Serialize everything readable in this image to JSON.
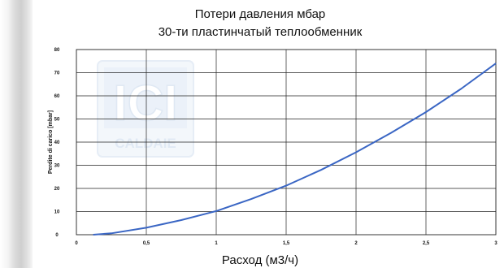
{
  "chart_data": {
    "type": "line",
    "title": "Потери давления мбар",
    "subtitle": "30-ти пластинчатый теплообменник",
    "xlabel": "Расход (м3/ч)",
    "ylabel": "Perdite di carico [mbar]",
    "xlim": [
      0,
      3
    ],
    "ylim": [
      0,
      80
    ],
    "x_ticks": [
      "0",
      "0,5",
      "1",
      "1,5",
      "2",
      "2,5",
      "3"
    ],
    "y_ticks": [
      "0",
      "10",
      "20",
      "30",
      "40",
      "50",
      "60",
      "70",
      "80"
    ],
    "grid": true,
    "series": [
      {
        "color": "#3a66c4",
        "x": [
          0.12,
          0.25,
          0.5,
          0.75,
          1.0,
          1.25,
          1.5,
          1.75,
          2.0,
          2.25,
          2.5,
          2.75,
          3.0
        ],
        "y": [
          0,
          0.6,
          3,
          6.3,
          10.2,
          15.4,
          21.2,
          28,
          35.6,
          44,
          53,
          63,
          74
        ]
      }
    ]
  },
  "watermark": {
    "logo_letters": "ICI",
    "logo_word": "CALDAIE"
  }
}
